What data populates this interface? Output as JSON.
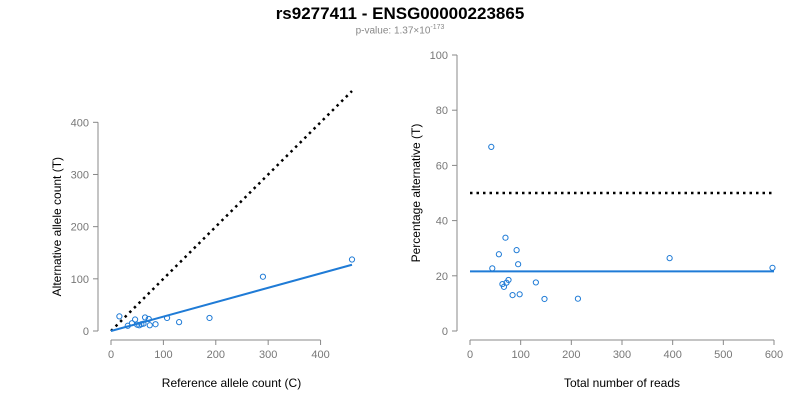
{
  "header": {
    "title": "rs9277411 - ENSG00000223865",
    "pvalue_prefix": "p-value: 1.37×10",
    "pvalue_exp": "-173"
  },
  "colors": {
    "accent": "#1f7bd6",
    "axis": "#888888",
    "reference": "#000000"
  },
  "chart_data": [
    {
      "type": "scatter",
      "xlabel": "Reference allele count (C)",
      "ylabel": "Alternative allele count (T)",
      "xlim": [
        0,
        460
      ],
      "ylim": [
        0,
        460
      ],
      "xticks": [
        0,
        100,
        200,
        300,
        400
      ],
      "yticks": [
        0,
        100,
        200,
        300,
        400
      ],
      "points": [
        {
          "x": 16,
          "y": 28
        },
        {
          "x": 32,
          "y": 10
        },
        {
          "x": 40,
          "y": 15
        },
        {
          "x": 46,
          "y": 22
        },
        {
          "x": 50,
          "y": 12
        },
        {
          "x": 54,
          "y": 11
        },
        {
          "x": 58,
          "y": 13
        },
        {
          "x": 62,
          "y": 14
        },
        {
          "x": 65,
          "y": 26
        },
        {
          "x": 72,
          "y": 23
        },
        {
          "x": 74,
          "y": 11
        },
        {
          "x": 85,
          "y": 13
        },
        {
          "x": 107,
          "y": 25
        },
        {
          "x": 130,
          "y": 17
        },
        {
          "x": 188,
          "y": 25
        },
        {
          "x": 290,
          "y": 104
        },
        {
          "x": 460,
          "y": 137
        }
      ],
      "reference_line": {
        "x": [
          0,
          460
        ],
        "y": [
          0,
          460
        ],
        "style": "dotted"
      },
      "fit_line": {
        "x": [
          0,
          460
        ],
        "y": [
          0,
          127
        ]
      }
    },
    {
      "type": "scatter",
      "xlabel": "Total number of reads",
      "ylabel": "Percentage alternative (T)",
      "xlim": [
        0,
        600
      ],
      "ylim": [
        0,
        100
      ],
      "xticks": [
        0,
        100,
        200,
        300,
        400,
        500,
        600
      ],
      "yticks": [
        0,
        20,
        40,
        60,
        80,
        100
      ],
      "points": [
        {
          "x": 42,
          "y": 66.7
        },
        {
          "x": 44,
          "y": 22.7
        },
        {
          "x": 57,
          "y": 27.8
        },
        {
          "x": 64,
          "y": 17.0
        },
        {
          "x": 67,
          "y": 16.0
        },
        {
          "x": 70,
          "y": 33.8
        },
        {
          "x": 72,
          "y": 17.5
        },
        {
          "x": 76,
          "y": 18.5
        },
        {
          "x": 84,
          "y": 13.0
        },
        {
          "x": 92,
          "y": 29.3
        },
        {
          "x": 95,
          "y": 24.2
        },
        {
          "x": 98,
          "y": 13.3
        },
        {
          "x": 130,
          "y": 17.6
        },
        {
          "x": 147,
          "y": 11.6
        },
        {
          "x": 213,
          "y": 11.7
        },
        {
          "x": 394,
          "y": 26.4
        },
        {
          "x": 597,
          "y": 22.9
        }
      ],
      "reference_line": {
        "x": [
          0,
          600
        ],
        "y": [
          50,
          50
        ],
        "style": "dotted"
      },
      "fit_line": {
        "x": [
          0,
          600
        ],
        "y": [
          21.6,
          21.6
        ]
      }
    }
  ]
}
